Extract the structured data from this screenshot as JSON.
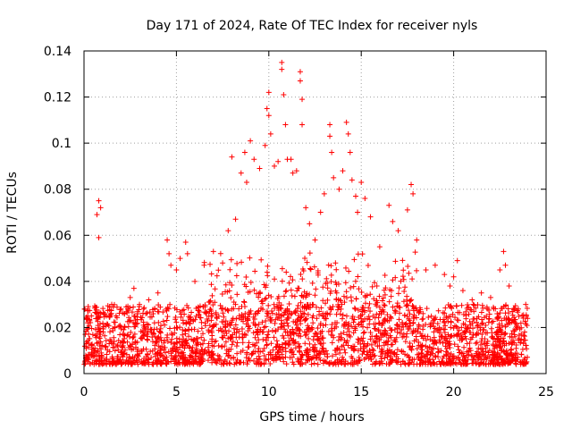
{
  "chart_data": {
    "type": "scatter",
    "title": "Day 171 of 2024, Rate Of TEC Index for receiver nyls",
    "xlabel": "GPS time / hours",
    "ylabel": "ROTI / TECUs",
    "xlim": [
      0,
      25
    ],
    "ylim": [
      0,
      0.14
    ],
    "xticks": [
      0,
      5,
      10,
      15,
      20,
      25
    ],
    "yticks": [
      0,
      0.02,
      0.04,
      0.06,
      0.08,
      0.1,
      0.12,
      0.14
    ],
    "xtick_labels": [
      "0",
      "5",
      "10",
      "15",
      "20",
      "25"
    ],
    "ytick_labels": [
      "0",
      "0.02",
      "0.04",
      "0.06",
      "0.08",
      "0.1",
      "0.12",
      "0.14"
    ],
    "grid": true,
    "marker": "+",
    "color": "#ff0000",
    "series": [
      {
        "name": "ROTI",
        "points": [
          [
            0.05,
            0.028
          ],
          [
            0.2,
            0.022
          ],
          [
            0.4,
            0.025
          ],
          [
            0.7,
            0.069
          ],
          [
            0.8,
            0.075
          ],
          [
            0.8,
            0.059
          ],
          [
            0.9,
            0.072
          ],
          [
            1.2,
            0.025
          ],
          [
            1.5,
            0.03
          ],
          [
            2.0,
            0.028
          ],
          [
            2.5,
            0.033
          ],
          [
            2.7,
            0.037
          ],
          [
            3.0,
            0.03
          ],
          [
            3.5,
            0.032
          ],
          [
            4.0,
            0.035
          ],
          [
            4.5,
            0.058
          ],
          [
            4.6,
            0.052
          ],
          [
            4.7,
            0.047
          ],
          [
            5.0,
            0.045
          ],
          [
            5.2,
            0.05
          ],
          [
            5.5,
            0.057
          ],
          [
            5.6,
            0.052
          ],
          [
            6.0,
            0.04
          ],
          [
            6.5,
            0.047
          ],
          [
            7.0,
            0.053
          ],
          [
            7.5,
            0.048
          ],
          [
            7.8,
            0.062
          ],
          [
            8.0,
            0.094
          ],
          [
            8.2,
            0.067
          ],
          [
            8.5,
            0.087
          ],
          [
            8.7,
            0.096
          ],
          [
            8.8,
            0.083
          ],
          [
            9.0,
            0.101
          ],
          [
            9.2,
            0.093
          ],
          [
            9.5,
            0.089
          ],
          [
            9.8,
            0.099
          ],
          [
            9.9,
            0.115
          ],
          [
            10.0,
            0.122
          ],
          [
            10.0,
            0.112
          ],
          [
            10.1,
            0.104
          ],
          [
            10.3,
            0.09
          ],
          [
            10.5,
            0.092
          ],
          [
            10.7,
            0.135
          ],
          [
            10.7,
            0.132
          ],
          [
            10.8,
            0.121
          ],
          [
            10.9,
            0.108
          ],
          [
            11.0,
            0.093
          ],
          [
            11.2,
            0.093
          ],
          [
            11.3,
            0.087
          ],
          [
            11.5,
            0.088
          ],
          [
            11.7,
            0.131
          ],
          [
            11.7,
            0.127
          ],
          [
            11.8,
            0.119
          ],
          [
            11.8,
            0.108
          ],
          [
            12.0,
            0.072
          ],
          [
            12.2,
            0.065
          ],
          [
            12.5,
            0.058
          ],
          [
            12.8,
            0.07
          ],
          [
            13.0,
            0.078
          ],
          [
            13.3,
            0.108
          ],
          [
            13.3,
            0.103
          ],
          [
            13.4,
            0.096
          ],
          [
            13.5,
            0.085
          ],
          [
            13.8,
            0.08
          ],
          [
            14.0,
            0.088
          ],
          [
            14.2,
            0.109
          ],
          [
            14.3,
            0.104
          ],
          [
            14.4,
            0.096
          ],
          [
            14.5,
            0.084
          ],
          [
            14.7,
            0.077
          ],
          [
            14.8,
            0.07
          ],
          [
            15.0,
            0.083
          ],
          [
            15.2,
            0.076
          ],
          [
            15.5,
            0.068
          ],
          [
            16.0,
            0.055
          ],
          [
            16.5,
            0.073
          ],
          [
            16.7,
            0.066
          ],
          [
            17.0,
            0.062
          ],
          [
            17.5,
            0.071
          ],
          [
            17.7,
            0.082
          ],
          [
            17.8,
            0.078
          ],
          [
            18.0,
            0.058
          ],
          [
            18.5,
            0.045
          ],
          [
            19.0,
            0.047
          ],
          [
            19.5,
            0.043
          ],
          [
            19.8,
            0.038
          ],
          [
            20.0,
            0.042
          ],
          [
            20.2,
            0.049
          ],
          [
            20.5,
            0.036
          ],
          [
            21.0,
            0.032
          ],
          [
            21.5,
            0.035
          ],
          [
            22.0,
            0.033
          ],
          [
            22.5,
            0.045
          ],
          [
            22.7,
            0.053
          ],
          [
            22.8,
            0.047
          ],
          [
            23.0,
            0.038
          ],
          [
            23.5,
            0.028
          ],
          [
            23.9,
            0.03
          ]
        ]
      }
    ],
    "baseline_band": {
      "description": "dense background of points",
      "x_range": [
        0,
        24
      ],
      "y_range": [
        0.004,
        0.03
      ]
    }
  }
}
